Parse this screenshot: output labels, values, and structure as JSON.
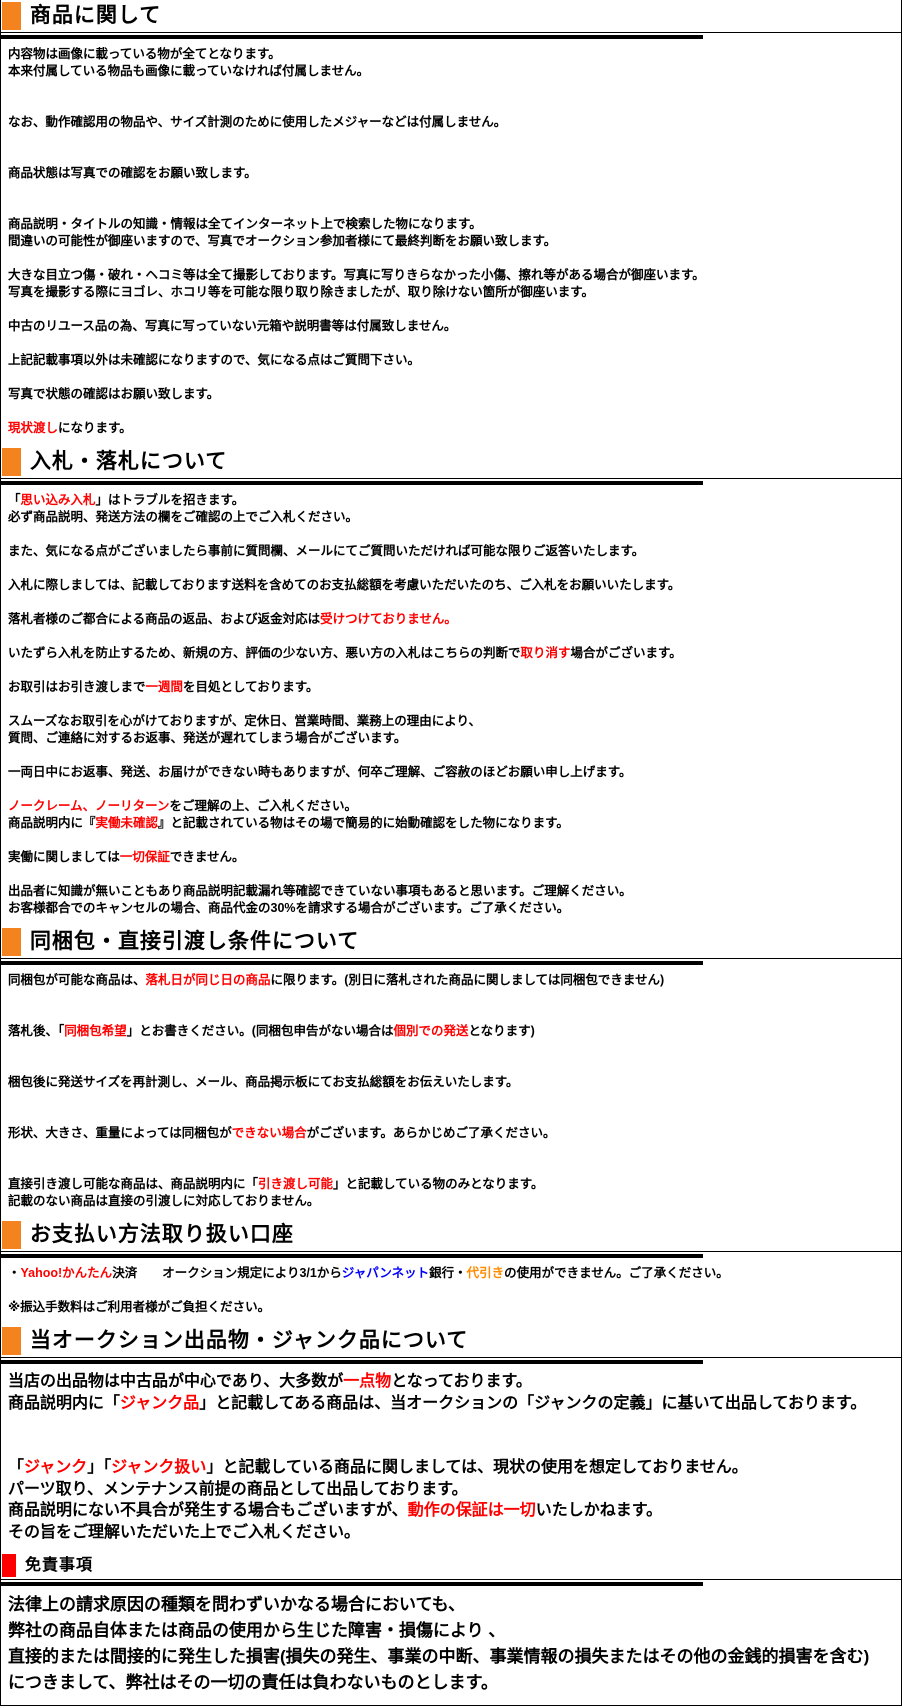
{
  "colors": {
    "black": "#000000",
    "red": "#ff0000",
    "orange_bullet": "#f4821f",
    "red_bullet": "#ff0000",
    "orange": "#ff8c00",
    "blue": "#0000ff"
  },
  "sections": [
    {
      "id": "about-product",
      "title": "商品に関して",
      "bullet_color": "orange_bullet",
      "heading_size": "large",
      "body_size": "small",
      "lines": [
        [
          {
            "t": "内容物は画像に載っている物が全てとなります。"
          }
        ],
        [
          {
            "t": "本来付属している物品も画像に載っていなければ付属しません。"
          }
        ],
        [],
        [],
        [
          {
            "t": "なお、動作確認用の物品や、サイズ計測のために使用したメジャーなどは付属しません。"
          }
        ],
        [],
        [],
        [
          {
            "t": "商品状態は写真での確認をお願い致します。"
          }
        ],
        [],
        [],
        [
          {
            "t": "商品説明・タイトルの知識・情報は全てインターネット上で検索した物になります。"
          }
        ],
        [
          {
            "t": "間違いの可能性が御座いますので、写真でオークション参加者様にて最終判断をお願い致します。"
          }
        ],
        [],
        [
          {
            "t": "大きな目立つ傷・破れ・ヘコミ等は全て撮影しております。写真に写りきらなかった小傷、擦れ等がある場合が御座います。"
          }
        ],
        [
          {
            "t": "写真を撮影する際にヨゴレ、ホコリ等を可能な限り取り除きましたが、取り除けない箇所が御座います。"
          }
        ],
        [],
        [
          {
            "t": "中古のリユース品の為、写真に写っていない元箱や説明書等は付属致しません。"
          }
        ],
        [],
        [
          {
            "t": "上記記載事項以外は未確認になりますので、気になる点はご質問下さい。"
          }
        ],
        [],
        [
          {
            "t": "写真で状態の確認はお願い致します。"
          }
        ],
        [],
        [
          {
            "t": "現状渡し",
            "c": "red"
          },
          {
            "t": "になります。"
          }
        ]
      ]
    },
    {
      "id": "bidding",
      "title": "入札・落札について",
      "bullet_color": "orange_bullet",
      "heading_size": "large",
      "body_size": "small",
      "lines": [
        [
          {
            "t": "「"
          },
          {
            "t": "思い込み入札",
            "c": "red"
          },
          {
            "t": "」はトラブルを招きます。"
          }
        ],
        [
          {
            "t": "必ず商品説明、発送方法の欄をご確認の上でご入札ください。"
          }
        ],
        [],
        [
          {
            "t": "また、気になる点がございましたら事前に質問欄、メールにてご質問いただければ可能な限りご返答いたします。"
          }
        ],
        [],
        [
          {
            "t": "入札に際しましては、記載しております送料を含めてのお支払総額を考慮いただいたのち、ご入札をお願いいたします。"
          }
        ],
        [],
        [
          {
            "t": "落札者様のご都合による商品の返品、および返金対応は"
          },
          {
            "t": "受けつけておりません。",
            "c": "red"
          }
        ],
        [],
        [
          {
            "t": "いたずら入札を防止するため、新規の方、評価の少ない方、悪い方の入札はこちらの判断で"
          },
          {
            "t": "取り消す",
            "c": "red"
          },
          {
            "t": "場合がございます。"
          }
        ],
        [],
        [
          {
            "t": "お取引はお引き渡しまで"
          },
          {
            "t": "一週間",
            "c": "red"
          },
          {
            "t": "を目処としております。"
          }
        ],
        [],
        [
          {
            "t": "スムーズなお取引を心がけておりますが、定休日、営業時間、業務上の理由により、"
          }
        ],
        [
          {
            "t": "質問、ご連絡に対するお返事、発送が遅れてしまう場合がございます。"
          }
        ],
        [],
        [
          {
            "t": "一両日中にお返事、発送、お届けができない時もありますが、何卒ご理解、ご容赦のほどお願い申し上げます。"
          }
        ],
        [],
        [
          {
            "t": "ノークレーム、ノーリターン",
            "c": "red"
          },
          {
            "t": "をご理解の上、ご入札ください。"
          }
        ],
        [
          {
            "t": "商品説明内に『"
          },
          {
            "t": "実働未確認",
            "c": "red"
          },
          {
            "t": "』と記載されている物はその場で簡易的に始動確認をした物になります。"
          }
        ],
        [],
        [
          {
            "t": "実働に関しましては"
          },
          {
            "t": "一切保証",
            "c": "red"
          },
          {
            "t": "できません。"
          }
        ],
        [],
        [
          {
            "t": "出品者に知識が無いこともあり商品説明記載漏れ等確認できていない事項もあると思います。ご理解ください。"
          }
        ],
        [
          {
            "t": "お客様都合でのキャンセルの場合、商品代金の30%を請求する場合がございます。ご了承ください。"
          }
        ]
      ]
    },
    {
      "id": "combined-shipping",
      "title": "同梱包・直接引渡し条件について",
      "bullet_color": "orange_bullet",
      "heading_size": "large",
      "body_size": "small",
      "lines": [
        [
          {
            "t": "同梱包が可能な商品は、"
          },
          {
            "t": "落札日が同じ日の商品",
            "c": "red"
          },
          {
            "t": "に限ります。(別日に落札された商品に関しましては同梱包できません)"
          }
        ],
        [],
        [],
        [
          {
            "t": "落札後、「"
          },
          {
            "t": "同梱包希望",
            "c": "red"
          },
          {
            "t": "」とお書きください。(同梱包申告がない場合は"
          },
          {
            "t": "個別での発送",
            "c": "red"
          },
          {
            "t": "となります)"
          }
        ],
        [],
        [],
        [
          {
            "t": "梱包後に発送サイズを再計測し、メール、商品掲示板にてお支払総額をお伝えいたします。"
          }
        ],
        [],
        [],
        [
          {
            "t": "形状、大きさ、重量によっては同梱包が"
          },
          {
            "t": "できない場合",
            "c": "red"
          },
          {
            "t": "がございます。あらかじめご了承ください。"
          }
        ],
        [],
        [],
        [
          {
            "t": "直接引き渡し可能な商品は、商品説明内に「"
          },
          {
            "t": "引き渡し可能",
            "c": "red"
          },
          {
            "t": "」と記載している物のみとなります。"
          }
        ],
        [
          {
            "t": "記載のない商品は直接の引渡しに対応しておりません。"
          }
        ]
      ]
    },
    {
      "id": "payment",
      "title": "お支払い方法取り扱い口座",
      "bullet_color": "orange_bullet",
      "heading_size": "large",
      "body_size": "small",
      "lines": [
        [
          {
            "t": "・"
          },
          {
            "t": "Yahoo!かんたん",
            "c": "red"
          },
          {
            "t": "決済　　オークション規定により3/1から"
          },
          {
            "t": "ジャパンネット",
            "c": "blue"
          },
          {
            "t": "銀行・"
          },
          {
            "t": "代引き",
            "c": "orange"
          },
          {
            "t": "の使用ができません。ご了承ください。"
          }
        ],
        [],
        [
          {
            "t": "※振込手数料はご利用者様がご負担ください。"
          }
        ]
      ]
    },
    {
      "id": "junk-items",
      "title": "当オークション出品物・ジャンク品について",
      "bullet_color": "orange_bullet",
      "heading_size": "large",
      "body_size": "large",
      "lines": [
        [
          {
            "t": "当店の出品物は中古品が中心であり、大多数が"
          },
          {
            "t": "一点物",
            "c": "red"
          },
          {
            "t": "となっております。"
          }
        ],
        [
          {
            "t": "商品説明内に「"
          },
          {
            "t": "ジャンク品",
            "c": "red"
          },
          {
            "t": "」と記載してある商品は、当オークションの「ジャンクの定義」に基いて出品しております。"
          }
        ],
        [],
        [],
        [
          {
            "t": "「"
          },
          {
            "t": "ジャンク",
            "c": "red"
          },
          {
            "t": "」「"
          },
          {
            "t": "ジャンク扱い",
            "c": "red"
          },
          {
            "t": "」と記載している商品に関しましては、現状の使用を想定しておりません。"
          }
        ],
        [
          {
            "t": "パーツ取り、メンテナンス前提の商品として出品しております。"
          }
        ],
        [
          {
            "t": "商品説明にない不具合が発生する場合もございますが、"
          },
          {
            "t": "動作の保証は一切",
            "c": "red"
          },
          {
            "t": "いたしかねます。"
          }
        ],
        [
          {
            "t": "その旨をご理解いただいた上でご入札ください。"
          }
        ]
      ]
    },
    {
      "id": "disclaimer",
      "title": "免責事項",
      "bullet_color": "red_bullet",
      "heading_size": "small",
      "body_size": "xlarge",
      "lines": [
        [
          {
            "t": "法律上の請求原因の種類を問わずいかなる場合においても、"
          }
        ],
        [
          {
            "t": "弊社の商品自体または商品の使用から生じた障害・損傷により 、"
          }
        ],
        [
          {
            "t": "直接的または間接的に発生した損害(損失の発生、事業の中断、事業情報の損失またはその他の金銭的損害を含む)"
          }
        ],
        [
          {
            "t": "につきまして、弊社はその一切の責任は負わないものとします。"
          }
        ]
      ]
    }
  ]
}
